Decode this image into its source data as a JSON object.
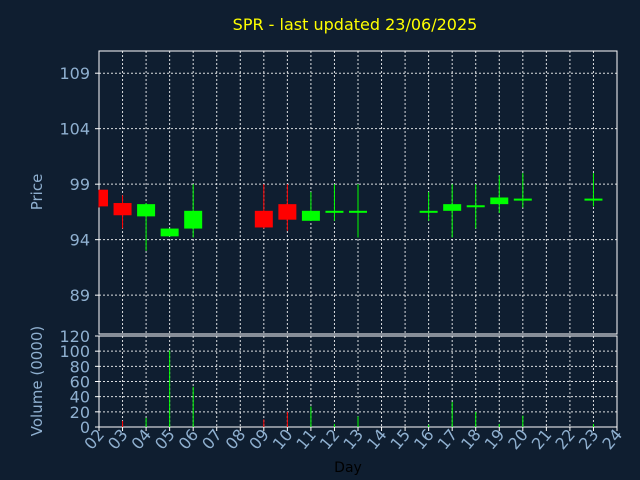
{
  "chart_data": [
    {
      "type": "candlestick",
      "title": "SPR - last updated 23/06/2025",
      "ylabel": "Price",
      "xlabel": "",
      "ylim": [
        85.5,
        111
      ],
      "yticks": [
        89,
        94,
        99,
        104,
        109
      ],
      "grid": true,
      "colors": {
        "up": "#00ff00",
        "down": "#ff0000"
      },
      "candles": [
        {
          "day": "02",
          "open": 98.5,
          "high": 98.5,
          "low": 96.9,
          "close": 97.0
        },
        {
          "day": "03",
          "open": 97.3,
          "high": 98.0,
          "low": 95.0,
          "close": 96.2
        },
        {
          "day": "04",
          "open": 96.1,
          "high": 97.3,
          "low": 93.0,
          "close": 97.2
        },
        {
          "day": "05",
          "open": 94.3,
          "high": 95.0,
          "low": 94.3,
          "close": 95.0
        },
        {
          "day": "06",
          "open": 95.0,
          "high": 99.0,
          "low": 94.2,
          "close": 96.6
        },
        {
          "day": "09",
          "open": 96.6,
          "high": 99.0,
          "low": 95.0,
          "close": 95.1
        },
        {
          "day": "10",
          "open": 97.2,
          "high": 99.0,
          "low": 94.8,
          "close": 95.8
        },
        {
          "day": "11",
          "open": 95.7,
          "high": 98.3,
          "low": 95.7,
          "close": 96.6
        },
        {
          "day": "12",
          "open": 96.5,
          "high": 99.0,
          "low": 95.7,
          "close": 96.6
        },
        {
          "day": "13",
          "open": 96.6,
          "high": 99.0,
          "low": 94.2,
          "close": 96.6
        },
        {
          "day": "16",
          "open": 96.5,
          "high": 98.3,
          "low": 95.7,
          "close": 96.6
        },
        {
          "day": "17",
          "open": 96.6,
          "high": 99.0,
          "low": 94.2,
          "close": 97.2
        },
        {
          "day": "18",
          "open": 97.0,
          "high": 99.0,
          "low": 95.0,
          "close": 97.1
        },
        {
          "day": "19",
          "open": 97.2,
          "high": 99.8,
          "low": 96.4,
          "close": 97.8
        },
        {
          "day": "20",
          "open": 97.6,
          "high": 100.0,
          "low": 96.9,
          "close": 97.7
        },
        {
          "day": "23",
          "open": 97.6,
          "high": 100.0,
          "low": 97.0,
          "close": 97.7
        }
      ]
    },
    {
      "type": "bar",
      "ylabel": "Volume (0000)",
      "xlabel": "Day",
      "ylim": [
        0,
        120
      ],
      "yticks": [
        0,
        20,
        40,
        60,
        80,
        100,
        120
      ],
      "grid": true,
      "categories": [
        "02",
        "03",
        "04",
        "05",
        "06",
        "07",
        "08",
        "09",
        "10",
        "11",
        "12",
        "13",
        "14",
        "15",
        "16",
        "17",
        "18",
        "19",
        "20",
        "21",
        "22",
        "23",
        "24"
      ],
      "bars": [
        {
          "day": "03",
          "value": 8,
          "color": "#ff0000"
        },
        {
          "day": "04",
          "value": 12,
          "color": "#00ff00"
        },
        {
          "day": "05",
          "value": 101,
          "color": "#00ff00"
        },
        {
          "day": "06",
          "value": 53,
          "color": "#00ff00"
        },
        {
          "day": "09",
          "value": 10,
          "color": "#ff0000"
        },
        {
          "day": "10",
          "value": 20,
          "color": "#ff0000"
        },
        {
          "day": "11",
          "value": 27,
          "color": "#00ff00"
        },
        {
          "day": "12",
          "value": 4,
          "color": "#00ff00"
        },
        {
          "day": "13",
          "value": 14,
          "color": "#00ff00"
        },
        {
          "day": "16",
          "value": 3,
          "color": "#00ff00"
        },
        {
          "day": "17",
          "value": 33,
          "color": "#00ff00"
        },
        {
          "day": "18",
          "value": 20,
          "color": "#00ff00"
        },
        {
          "day": "19",
          "value": 4,
          "color": "#00ff00"
        },
        {
          "day": "20",
          "value": 15,
          "color": "#00ff00"
        },
        {
          "day": "23",
          "value": 4,
          "color": "#00ff00"
        }
      ]
    }
  ]
}
